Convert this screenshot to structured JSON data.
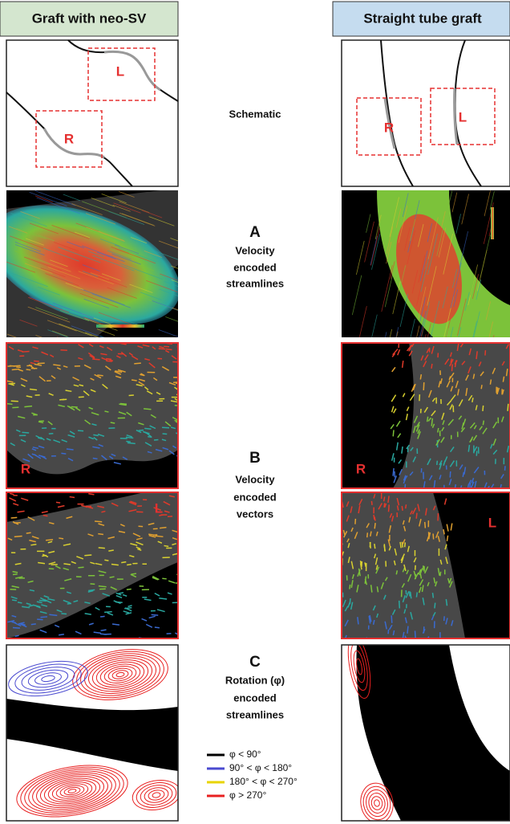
{
  "headers": [
    "Graft with neo-SV",
    "Straight tube graft"
  ],
  "schematic": {
    "label": "Schematic",
    "left_boxes": [
      "L",
      "R"
    ],
    "right_boxes": [
      "R",
      "L"
    ]
  },
  "panel_a": {
    "letter": "A",
    "lines": [
      "Velocity",
      "encoded",
      "streamlines"
    ]
  },
  "panel_b": {
    "letter": "B",
    "lines": [
      "Velocity",
      "encoded",
      "vectors"
    ],
    "left_labels": [
      "R",
      "L"
    ],
    "right_labels": [
      "R",
      "L"
    ]
  },
  "panel_c": {
    "letter": "C",
    "lines": [
      "Rotation (φ)",
      "encoded",
      "streamlines"
    ]
  },
  "legend": [
    {
      "label": "φ < 90°",
      "color": "#000000"
    },
    {
      "label": "90° < φ < 180°",
      "color": "#4a4ad0"
    },
    {
      "label": "180° < φ < 270°",
      "color": "#e8d400"
    },
    {
      "label": "φ > 270°",
      "color": "#e82020"
    }
  ]
}
